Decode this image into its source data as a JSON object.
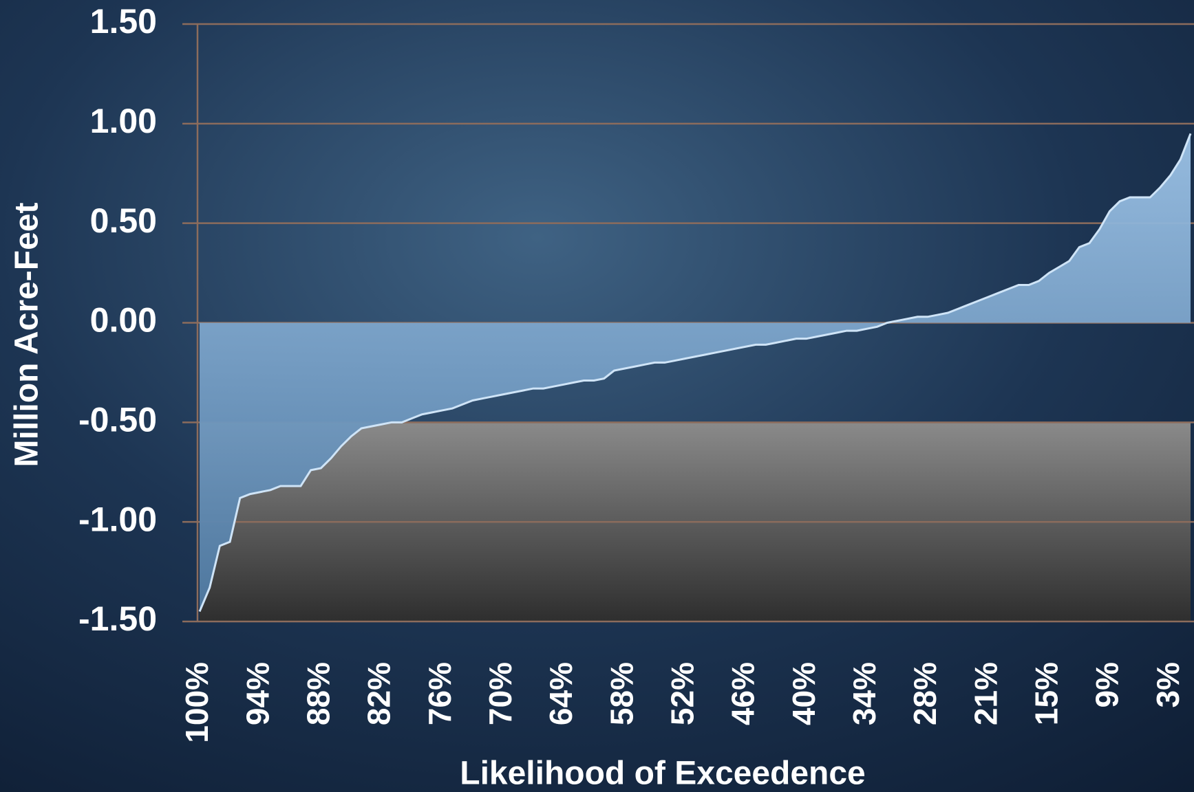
{
  "chart_data": {
    "type": "area",
    "x_label": "Likelihood of Exceedence",
    "y_label": "Million Acre-Feet",
    "categories": [
      "100%",
      null,
      null,
      null,
      null,
      null,
      "94%",
      null,
      null,
      null,
      null,
      null,
      "88%",
      null,
      null,
      null,
      null,
      null,
      "82%",
      null,
      null,
      null,
      null,
      null,
      "76%",
      null,
      null,
      null,
      null,
      null,
      "70%",
      null,
      null,
      null,
      null,
      null,
      "64%",
      null,
      null,
      null,
      null,
      null,
      "58%",
      null,
      null,
      null,
      null,
      null,
      "52%",
      null,
      null,
      null,
      null,
      null,
      "46%",
      null,
      null,
      null,
      null,
      null,
      "40%",
      null,
      null,
      null,
      null,
      null,
      "34%",
      null,
      null,
      null,
      null,
      null,
      "28%",
      null,
      null,
      null,
      null,
      null,
      "21%",
      null,
      null,
      null,
      null,
      null,
      "15%",
      null,
      null,
      null,
      null,
      null,
      "9%",
      null,
      null,
      null,
      null,
      null,
      "3%",
      null,
      null
    ],
    "values": [
      -1.45,
      -1.33,
      -1.12,
      -1.1,
      -0.88,
      -0.86,
      -0.85,
      -0.84,
      -0.82,
      -0.82,
      -0.82,
      -0.74,
      -0.73,
      -0.68,
      -0.62,
      -0.57,
      -0.53,
      -0.52,
      -0.51,
      -0.5,
      -0.5,
      -0.48,
      -0.46,
      -0.45,
      -0.44,
      -0.43,
      -0.41,
      -0.39,
      -0.38,
      -0.37,
      -0.36,
      -0.35,
      -0.34,
      -0.33,
      -0.33,
      -0.32,
      -0.31,
      -0.3,
      -0.29,
      -0.29,
      -0.28,
      -0.24,
      -0.23,
      -0.22,
      -0.21,
      -0.2,
      -0.2,
      -0.19,
      -0.18,
      -0.17,
      -0.16,
      -0.15,
      -0.14,
      -0.13,
      -0.12,
      -0.11,
      -0.11,
      -0.1,
      -0.09,
      -0.08,
      -0.08,
      -0.07,
      -0.06,
      -0.05,
      -0.04,
      -0.04,
      -0.03,
      -0.02,
      0.0,
      0.01,
      0.02,
      0.03,
      0.03,
      0.04,
      0.05,
      0.07,
      0.09,
      0.11,
      0.13,
      0.15,
      0.17,
      0.19,
      0.19,
      0.21,
      0.25,
      0.28,
      0.31,
      0.38,
      0.4,
      0.47,
      0.56,
      0.61,
      0.63,
      0.63,
      0.63,
      0.68,
      0.74,
      0.82,
      0.95
    ],
    "color": "#6a97c2",
    "ylim": [
      -1.5,
      1.5
    ],
    "yticks": [
      {
        "value": 1.5,
        "label": "1.50"
      },
      {
        "value": 1,
        "label": "1.00"
      },
      {
        "value": 0.5,
        "label": "0.50"
      },
      {
        "value": 0,
        "label": "0.00"
      },
      {
        "value": -0.5,
        "label": "-0.50"
      },
      {
        "value": -1,
        "label": "-1.00"
      },
      {
        "value": -1.5,
        "label": "-1.50"
      }
    ],
    "grid": true
  }
}
